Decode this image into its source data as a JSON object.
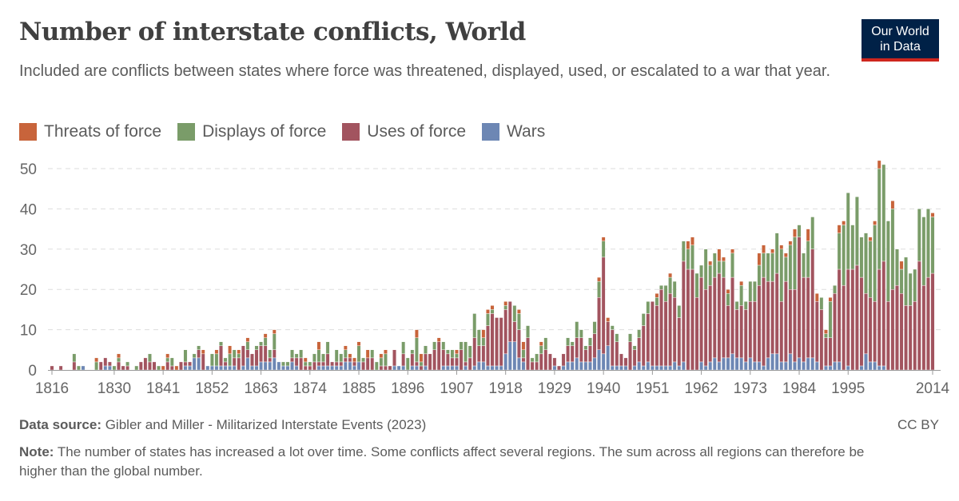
{
  "header": {
    "title": "Number of interstate conflicts, World",
    "subtitle": "Included are conflicts between states where force was threatened, displayed, used, or escalated to a war that year.",
    "logo_line1": "Our World",
    "logo_line2": "in Data"
  },
  "footer": {
    "source_label": "Data source:",
    "source_text": " Gibler and Miller - Militarized Interstate Events (2023)",
    "license": "CC BY",
    "note_label": "Note:",
    "note_text": " The number of states has increased a lot over time. Some conflicts affect several regions. The sum across all regions can therefore be higher than the global number."
  },
  "chart_data": {
    "type": "bar",
    "stacked": true,
    "x_range": [
      1816,
      2014
    ],
    "ylim": [
      0,
      50
    ],
    "y_ticks": [
      "0",
      "10",
      "20",
      "30",
      "40",
      "50"
    ],
    "x_ticks": [
      "1816",
      "1830",
      "1841",
      "1852",
      "1863",
      "1874",
      "1885",
      "1896",
      "1907",
      "1918",
      "1929",
      "1940",
      "1951",
      "1962",
      "1973",
      "1984",
      "1995",
      "2014"
    ],
    "grid": "horizontal dashed",
    "legend_position": "top",
    "series": [
      {
        "name": "Threats of force",
        "color": "#c8643b",
        "values": [
          0,
          0,
          0,
          0,
          0,
          0,
          0,
          0,
          0,
          0,
          1,
          0,
          0,
          0,
          0,
          1,
          0,
          0,
          0,
          0,
          0,
          0,
          0,
          0,
          0,
          1,
          1,
          0,
          1,
          0,
          0,
          0,
          0,
          0,
          1,
          0,
          0,
          1,
          0,
          0,
          2,
          0,
          1,
          0,
          1,
          0,
          0,
          0,
          1,
          0,
          1,
          0,
          0,
          0,
          0,
          0,
          0,
          1,
          0,
          0,
          2,
          0,
          0,
          0,
          0,
          0,
          1,
          1,
          1,
          1,
          0,
          2,
          0,
          0,
          1,
          1,
          0,
          0,
          0,
          0,
          0,
          0,
          2,
          2,
          0,
          0,
          0,
          1,
          0,
          0,
          0,
          1,
          0,
          0,
          0,
          0,
          0,
          2,
          1,
          1,
          0,
          0,
          1,
          0,
          0,
          1,
          2,
          0,
          0,
          0,
          1,
          0,
          0,
          0,
          0,
          0,
          0,
          0,
          0,
          0,
          0,
          0,
          0,
          1,
          1,
          1,
          0,
          0,
          0,
          0,
          0,
          0,
          0,
          0,
          0,
          0,
          1,
          0,
          0,
          1,
          0,
          0,
          0,
          2,
          2,
          0,
          0,
          0,
          1,
          0,
          3,
          1,
          1,
          1,
          0,
          1,
          0,
          0,
          0,
          3,
          2,
          0,
          1,
          0,
          1,
          1,
          1,
          2,
          0,
          0,
          3,
          0,
          2,
          0,
          1,
          1,
          0,
          2,
          1,
          0,
          0,
          0,
          0,
          0,
          1,
          1,
          2,
          0,
          0,
          2,
          0,
          2,
          0,
          0,
          0,
          0,
          0,
          0,
          1
        ]
      },
      {
        "name": "Displays of force",
        "color": "#7a9c69",
        "values": [
          0,
          0,
          0,
          0,
          0,
          2,
          1,
          0,
          0,
          0,
          2,
          0,
          0,
          0,
          1,
          1,
          0,
          1,
          0,
          1,
          0,
          0,
          2,
          0,
          1,
          0,
          1,
          2,
          0,
          0,
          3,
          0,
          1,
          1,
          0,
          0,
          3,
          3,
          1,
          1,
          3,
          2,
          1,
          0,
          2,
          0,
          1,
          1,
          2,
          2,
          4,
          0,
          1,
          1,
          2,
          1,
          2,
          1,
          1,
          2,
          3,
          2,
          3,
          0,
          3,
          2,
          2,
          0,
          0,
          4,
          1,
          0,
          2,
          2,
          2,
          3,
          0,
          0,
          0,
          3,
          3,
          1,
          6,
          1,
          2,
          0,
          2,
          0,
          2,
          1,
          2,
          1,
          2,
          5,
          3,
          6,
          4,
          2,
          3,
          1,
          0,
          0,
          1,
          0,
          4,
          4,
          2,
          3,
          1,
          2,
          2,
          3,
          0,
          0,
          0,
          0,
          2,
          1,
          4,
          2,
          1,
          2,
          3,
          4,
          4,
          0,
          1,
          2,
          0,
          0,
          2,
          1,
          2,
          3,
          3,
          0,
          2,
          1,
          4,
          4,
          4,
          3,
          5,
          5,
          6,
          6,
          3,
          10,
          5,
          6,
          3,
          4,
          3,
          6,
          2,
          5,
          2,
          5,
          5,
          5,
          6,
          7,
          7,
          10,
          13,
          6,
          11,
          13,
          3,
          6,
          9,
          8,
          0,
          3,
          1,
          9,
          2,
          9,
          15,
          19,
          11,
          17,
          10,
          15,
          14,
          19,
          25,
          24,
          20,
          20,
          9,
          6,
          12,
          8,
          8,
          13,
          17,
          17,
          14
        ]
      },
      {
        "name": "Uses of force",
        "color": "#a2545f",
        "values": [
          1,
          0,
          1,
          0,
          0,
          2,
          0,
          0,
          0,
          0,
          0,
          2,
          2,
          1,
          0,
          2,
          1,
          1,
          0,
          0,
          2,
          3,
          2,
          2,
          0,
          0,
          2,
          1,
          0,
          2,
          1,
          1,
          0,
          2,
          4,
          0,
          0,
          0,
          5,
          1,
          0,
          2,
          3,
          5,
          2,
          3,
          4,
          4,
          4,
          1,
          2,
          0,
          0,
          0,
          1,
          2,
          3,
          1,
          1,
          2,
          1,
          1,
          3,
          1,
          1,
          1,
          1,
          1,
          1,
          0,
          2,
          3,
          3,
          0,
          1,
          1,
          1,
          4,
          0,
          3,
          0,
          3,
          1,
          1,
          3,
          4,
          5,
          7,
          4,
          3,
          2,
          2,
          5,
          1,
          3,
          7,
          4,
          4,
          10,
          13,
          12,
          12,
          11,
          10,
          5,
          7,
          1,
          8,
          2,
          2,
          4,
          5,
          4,
          2,
          1,
          3,
          4,
          4,
          5,
          6,
          3,
          4,
          6,
          13,
          24,
          6,
          9,
          6,
          3,
          2,
          7,
          4,
          6,
          10,
          12,
          16,
          15,
          19,
          16,
          18,
          16,
          12,
          25,
          25,
          25,
          18,
          21,
          19,
          19,
          20,
          22,
          20,
          13,
          19,
          12,
          13,
          13,
          14,
          15,
          19,
          22,
          19,
          18,
          20,
          15,
          20,
          16,
          18,
          30,
          21,
          20,
          27,
          15,
          15,
          7,
          7,
          17,
          23,
          21,
          24,
          25,
          26,
          22,
          15,
          16,
          15,
          24,
          26,
          17,
          20,
          21,
          19,
          16,
          16,
          17,
          27,
          21,
          23,
          24
        ]
      },
      {
        "name": "Wars",
        "color": "#6d87b4",
        "values": [
          0,
          0,
          0,
          0,
          0,
          0,
          0,
          1,
          0,
          0,
          0,
          0,
          1,
          1,
          0,
          0,
          0,
          0,
          0,
          0,
          0,
          0,
          0,
          0,
          0,
          0,
          0,
          0,
          0,
          0,
          1,
          1,
          3,
          3,
          0,
          1,
          1,
          1,
          1,
          1,
          1,
          1,
          0,
          1,
          3,
          1,
          1,
          2,
          2,
          2,
          3,
          2,
          1,
          1,
          2,
          1,
          0,
          0,
          0,
          0,
          1,
          1,
          1,
          1,
          1,
          1,
          2,
          2,
          1,
          2,
          0,
          0,
          0,
          0,
          0,
          0,
          0,
          1,
          1,
          1,
          0,
          1,
          1,
          0,
          1,
          0,
          0,
          0,
          1,
          1,
          1,
          1,
          0,
          1,
          0,
          1,
          2,
          2,
          1,
          1,
          1,
          1,
          4,
          7,
          7,
          3,
          2,
          0,
          0,
          0,
          0,
          0,
          0,
          1,
          0,
          1,
          2,
          2,
          3,
          2,
          2,
          2,
          3,
          5,
          4,
          6,
          1,
          1,
          1,
          1,
          0,
          1,
          2,
          1,
          2,
          1,
          1,
          1,
          1,
          1,
          2,
          1,
          2,
          0,
          0,
          0,
          2,
          1,
          2,
          3,
          2,
          3,
          3,
          4,
          3,
          3,
          2,
          3,
          2,
          2,
          1,
          3,
          4,
          4,
          2,
          2,
          4,
          2,
          3,
          2,
          3,
          3,
          2,
          0,
          1,
          1,
          2,
          2,
          0,
          1,
          0,
          0,
          1,
          4,
          2,
          2,
          1,
          1,
          0,
          0,
          0,
          0,
          0,
          0,
          0,
          0,
          0,
          0,
          0
        ]
      }
    ]
  }
}
